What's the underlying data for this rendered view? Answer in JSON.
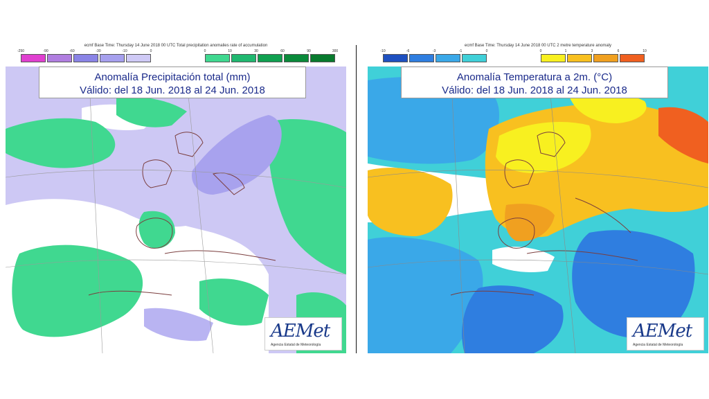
{
  "left": {
    "header": "ecmf  Base Time: Thursday 14 June 2018 00 UTC Total precipitation anomalies rate of accumulation",
    "scale_ticks": [
      "-250",
      "-90",
      "-60",
      "-30",
      "-10",
      "0",
      "0",
      "10",
      "30",
      "60",
      "90",
      "300"
    ],
    "colors": [
      "#e040d0",
      "#b07ee0",
      "#8a84e6",
      "#a6a0ee",
      "#cfcaf6",
      "#ffffff",
      "#40d890",
      "#20b870",
      "#10a050",
      "#0a8a3a",
      "#087a2e"
    ],
    "title_line1": "Anomalía Precipitación total (mm)",
    "title_line2": "Válido: del 18 Jun. 2018 al 24 Jun. 2018",
    "logo": "AEMet",
    "logo_sub": "Agencia Estatal de Meteorología"
  },
  "right": {
    "header": "ecmf  Base Time: Thursday 14 June 2018 00 UTC 2 metre temperature anomaly",
    "scale_ticks": [
      "-10",
      "-6",
      "-3",
      "-1",
      "0",
      "0",
      "1",
      "3",
      "6",
      "10"
    ],
    "colors": [
      "#1e50c0",
      "#2f7ee0",
      "#3aa8e8",
      "#40d0d8",
      "#ffffff",
      "#f8f020",
      "#f8c020",
      "#f0a020",
      "#f06020"
    ],
    "title_line1": "Anomalía Temperatura a 2m. (°C)",
    "title_line2": "Válido: del 18 Jun. 2018 al 24 Jun. 2018",
    "logo": "AEMet",
    "logo_sub": "Agencia Estatal de Meteorología"
  }
}
